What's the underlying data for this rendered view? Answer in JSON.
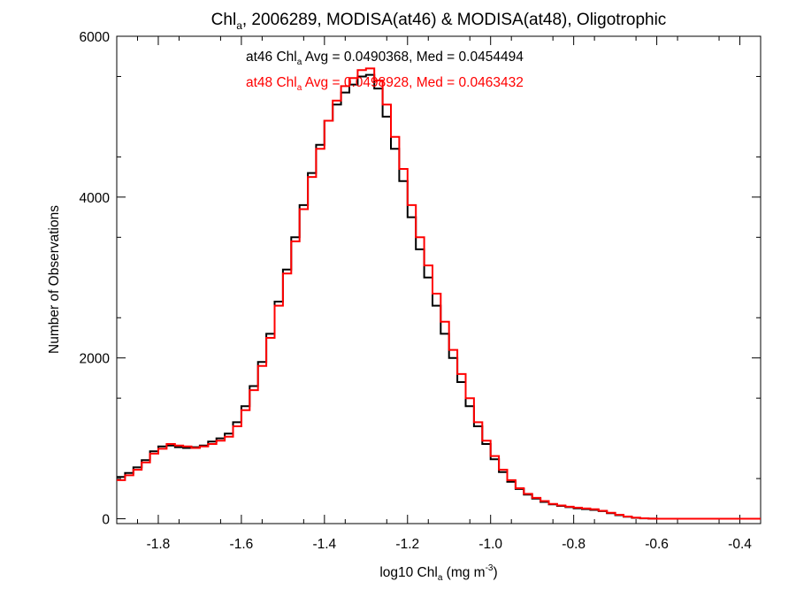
{
  "chart_data": {
    "type": "line",
    "step": true,
    "title": {
      "prefix": "Chl",
      "sub": "a",
      "suffix": ", 2006289, MODISA(at46) & MODISA(at48), Oligotrophic"
    },
    "xlabel": {
      "prefix": "log10 Chl",
      "sub": "a",
      "middle": " (mg m",
      "sup": "-3",
      "suffix": ")"
    },
    "ylabel": "Number of Observations",
    "xlim": [
      -1.9,
      -0.35
    ],
    "ylim": [
      -60,
      6000
    ],
    "xticks": [
      -1.8,
      -1.6,
      -1.4,
      -1.2,
      -1.0,
      -0.8,
      -0.6,
      -0.4
    ],
    "xtick_labels": [
      "-1.8",
      "-1.6",
      "-1.4",
      "-1.2",
      "-1.0",
      "-0.8",
      "-0.6",
      "-0.4"
    ],
    "yticks": [
      0,
      2000,
      4000,
      6000
    ],
    "ytick_labels": [
      "0",
      "2000",
      "4000",
      "6000"
    ],
    "grid": false,
    "annotations": [
      {
        "prefix": "at46 Chl",
        "sub": "a",
        "suffix": " Avg = 0.0490368, Med = 0.0454494",
        "color": "#000000"
      },
      {
        "prefix": "at48 Chl",
        "sub": "a",
        "suffix": " Avg = 0.0498928, Med = 0.0463432",
        "color": "#ff0000"
      }
    ],
    "series": [
      {
        "color": "#000000",
        "points": [
          [
            -1.9,
            520
          ],
          [
            -1.88,
            570
          ],
          [
            -1.86,
            640
          ],
          [
            -1.84,
            730
          ],
          [
            -1.82,
            840
          ],
          [
            -1.8,
            900
          ],
          [
            -1.78,
            910
          ],
          [
            -1.76,
            890
          ],
          [
            -1.74,
            880
          ],
          [
            -1.72,
            890
          ],
          [
            -1.7,
            910
          ],
          [
            -1.68,
            960
          ],
          [
            -1.66,
            1000
          ],
          [
            -1.64,
            1060
          ],
          [
            -1.62,
            1200
          ],
          [
            -1.6,
            1400
          ],
          [
            -1.58,
            1650
          ],
          [
            -1.56,
            1950
          ],
          [
            -1.54,
            2300
          ],
          [
            -1.52,
            2700
          ],
          [
            -1.5,
            3100
          ],
          [
            -1.48,
            3500
          ],
          [
            -1.46,
            3900
          ],
          [
            -1.44,
            4300
          ],
          [
            -1.42,
            4650
          ],
          [
            -1.4,
            4950
          ],
          [
            -1.38,
            5150
          ],
          [
            -1.36,
            5300
          ],
          [
            -1.34,
            5400
          ],
          [
            -1.32,
            5500
          ],
          [
            -1.3,
            5520
          ],
          [
            -1.28,
            5350
          ],
          [
            -1.26,
            5000
          ],
          [
            -1.24,
            4600
          ],
          [
            -1.22,
            4200
          ],
          [
            -1.2,
            3750
          ],
          [
            -1.18,
            3350
          ],
          [
            -1.16,
            3000
          ],
          [
            -1.14,
            2650
          ],
          [
            -1.12,
            2300
          ],
          [
            -1.1,
            2000
          ],
          [
            -1.08,
            1700
          ],
          [
            -1.06,
            1400
          ],
          [
            -1.04,
            1150
          ],
          [
            -1.02,
            930
          ],
          [
            -1.0,
            740
          ],
          [
            -0.98,
            580
          ],
          [
            -0.96,
            460
          ],
          [
            -0.94,
            370
          ],
          [
            -0.92,
            300
          ],
          [
            -0.9,
            250
          ],
          [
            -0.88,
            210
          ],
          [
            -0.86,
            180
          ],
          [
            -0.84,
            160
          ],
          [
            -0.82,
            145
          ],
          [
            -0.8,
            130
          ],
          [
            -0.78,
            120
          ],
          [
            -0.76,
            110
          ],
          [
            -0.74,
            95
          ],
          [
            -0.72,
            70
          ],
          [
            -0.7,
            45
          ],
          [
            -0.68,
            25
          ],
          [
            -0.66,
            12
          ],
          [
            -0.64,
            5
          ],
          [
            -0.62,
            2
          ],
          [
            -0.6,
            0
          ],
          [
            -0.35,
            0
          ]
        ]
      },
      {
        "color": "#ff0000",
        "points": [
          [
            -1.9,
            480
          ],
          [
            -1.88,
            540
          ],
          [
            -1.86,
            610
          ],
          [
            -1.84,
            700
          ],
          [
            -1.82,
            810
          ],
          [
            -1.8,
            870
          ],
          [
            -1.78,
            930
          ],
          [
            -1.76,
            910
          ],
          [
            -1.74,
            900
          ],
          [
            -1.72,
            880
          ],
          [
            -1.7,
            900
          ],
          [
            -1.68,
            930
          ],
          [
            -1.66,
            970
          ],
          [
            -1.64,
            1020
          ],
          [
            -1.62,
            1150
          ],
          [
            -1.6,
            1350
          ],
          [
            -1.58,
            1600
          ],
          [
            -1.56,
            1900
          ],
          [
            -1.54,
            2250
          ],
          [
            -1.52,
            2650
          ],
          [
            -1.5,
            3050
          ],
          [
            -1.48,
            3450
          ],
          [
            -1.46,
            3850
          ],
          [
            -1.44,
            4250
          ],
          [
            -1.42,
            4600
          ],
          [
            -1.4,
            4950
          ],
          [
            -1.38,
            5200
          ],
          [
            -1.36,
            5380
          ],
          [
            -1.34,
            5480
          ],
          [
            -1.32,
            5580
          ],
          [
            -1.3,
            5600
          ],
          [
            -1.28,
            5450
          ],
          [
            -1.26,
            5150
          ],
          [
            -1.24,
            4750
          ],
          [
            -1.22,
            4350
          ],
          [
            -1.2,
            3900
          ],
          [
            -1.18,
            3500
          ],
          [
            -1.16,
            3150
          ],
          [
            -1.14,
            2800
          ],
          [
            -1.12,
            2450
          ],
          [
            -1.1,
            2100
          ],
          [
            -1.08,
            1800
          ],
          [
            -1.06,
            1500
          ],
          [
            -1.04,
            1200
          ],
          [
            -1.02,
            970
          ],
          [
            -1.0,
            780
          ],
          [
            -0.98,
            610
          ],
          [
            -0.96,
            480
          ],
          [
            -0.94,
            380
          ],
          [
            -0.92,
            310
          ],
          [
            -0.9,
            260
          ],
          [
            -0.88,
            220
          ],
          [
            -0.86,
            185
          ],
          [
            -0.84,
            165
          ],
          [
            -0.82,
            150
          ],
          [
            -0.8,
            138
          ],
          [
            -0.78,
            128
          ],
          [
            -0.76,
            118
          ],
          [
            -0.74,
            100
          ],
          [
            -0.72,
            75
          ],
          [
            -0.7,
            50
          ],
          [
            -0.68,
            28
          ],
          [
            -0.66,
            14
          ],
          [
            -0.64,
            6
          ],
          [
            -0.62,
            2
          ],
          [
            -0.6,
            0
          ],
          [
            -0.35,
            0
          ]
        ]
      }
    ]
  }
}
